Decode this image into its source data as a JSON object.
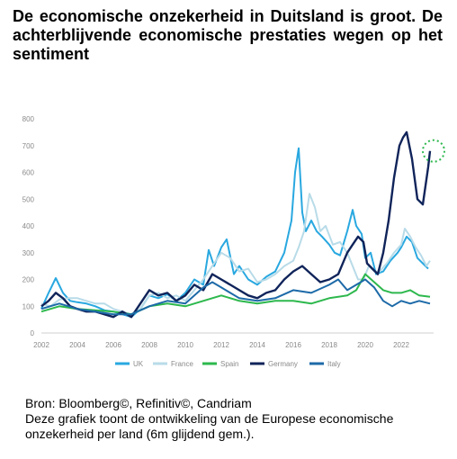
{
  "title": "De economische onzekerheid in Duitsland is groot. De achterblijvende economische prestaties wegen op het sentiment",
  "footer": {
    "source": "Bron: Bloomberg©, Refinitiv©, Candriam",
    "note": "Deze grafiek toont de ontwikkeling van de Europese economische onzekerheid per land (6m glijdend gem.)."
  },
  "chart_data": {
    "type": "line",
    "xlim": [
      2002,
      2023.8
    ],
    "ylim": [
      0,
      800
    ],
    "xticks": [
      2002,
      2004,
      2006,
      2008,
      2010,
      2012,
      2014,
      2016,
      2018,
      2020,
      2022
    ],
    "xtick_labels": [
      "2002",
      "2004",
      "2006",
      "2008",
      "2010",
      "2012",
      "2014",
      "2016",
      "2018",
      "2020",
      "2022"
    ],
    "yticks": [
      0,
      100,
      200,
      300,
      400,
      500,
      600,
      700,
      800
    ],
    "ytick_labels": [
      "0",
      "100",
      "200",
      "300",
      "400",
      "500",
      "600",
      "700",
      "800"
    ],
    "grid": false,
    "legend_position": "bottom",
    "annotation": "dotted green circle around latest Germany value",
    "series": [
      {
        "name": "UK",
        "color": "#29a8e0",
        "x": [
          2002,
          2002.4,
          2002.8,
          2003.2,
          2003.6,
          2004,
          2004.5,
          2005,
          2005.5,
          2006,
          2006.5,
          2007,
          2007.5,
          2008,
          2008.5,
          2009,
          2009.5,
          2010,
          2010.5,
          2011,
          2011.3,
          2011.6,
          2012,
          2012.3,
          2012.7,
          2013,
          2013.5,
          2014,
          2014.5,
          2015,
          2015.5,
          2015.9,
          2016.1,
          2016.3,
          2016.5,
          2016.7,
          2017,
          2017.3,
          2017.6,
          2018,
          2018.3,
          2018.6,
          2019,
          2019.3,
          2019.5,
          2019.8,
          2020,
          2020.3,
          2020.6,
          2021,
          2021.4,
          2021.8,
          2022,
          2022.3,
          2022.6,
          2022.9,
          2023.2,
          2023.5
        ],
        "y": [
          90,
          150,
          205,
          150,
          120,
          115,
          110,
          100,
          85,
          80,
          70,
          60,
          90,
          140,
          130,
          145,
          120,
          150,
          200,
          180,
          310,
          250,
          320,
          350,
          220,
          250,
          200,
          180,
          210,
          230,
          300,
          420,
          600,
          690,
          450,
          380,
          420,
          380,
          360,
          330,
          300,
          290,
          380,
          460,
          400,
          370,
          280,
          300,
          220,
          230,
          270,
          300,
          320,
          360,
          340,
          280,
          260,
          240
        ]
      },
      {
        "name": "France",
        "color": "#b8dbe8",
        "x": [
          2002,
          2002.5,
          2003,
          2003.5,
          2004,
          2004.5,
          2005,
          2005.5,
          2006,
          2006.5,
          2007,
          2007.5,
          2008,
          2008.5,
          2009,
          2009.5,
          2010,
          2010.5,
          2011,
          2011.5,
          2012,
          2012.5,
          2013,
          2013.5,
          2014,
          2014.5,
          2015,
          2015.5,
          2016,
          2016.3,
          2016.6,
          2016.9,
          2017.2,
          2017.5,
          2017.8,
          2018.2,
          2018.6,
          2019,
          2019.3,
          2019.6,
          2019.9,
          2020.2,
          2020.5,
          2020.8,
          2021.2,
          2021.6,
          2022,
          2022.2,
          2022.5,
          2022.8,
          2023.1,
          2023.4,
          2023.6
        ],
        "y": [
          110,
          100,
          125,
          130,
          130,
          120,
          110,
          110,
          90,
          80,
          70,
          90,
          140,
          150,
          130,
          140,
          120,
          160,
          200,
          250,
          300,
          280,
          230,
          240,
          190,
          200,
          220,
          250,
          270,
          320,
          380,
          520,
          470,
          380,
          400,
          330,
          340,
          300,
          250,
          200,
          200,
          250,
          230,
          230,
          260,
          300,
          330,
          390,
          360,
          320,
          290,
          250,
          270
        ]
      },
      {
        "name": "Spain",
        "color": "#2db84d",
        "x": [
          2002,
          2003,
          2004,
          2005,
          2006,
          2007,
          2008,
          2009,
          2010,
          2011,
          2012,
          2013,
          2014,
          2015,
          2016,
          2017,
          2018,
          2019,
          2019.5,
          2020,
          2020.5,
          2021,
          2021.5,
          2022,
          2022.5,
          2023,
          2023.6
        ],
        "y": [
          80,
          100,
          90,
          85,
          80,
          70,
          100,
          110,
          100,
          120,
          140,
          120,
          110,
          120,
          120,
          110,
          130,
          140,
          160,
          220,
          190,
          160,
          150,
          150,
          160,
          140,
          135
        ]
      },
      {
        "name": "Germany",
        "color": "#10245a",
        "x": [
          2002,
          2002.4,
          2002.8,
          2003.2,
          2003.6,
          2004,
          2004.5,
          2005,
          2005.5,
          2006,
          2006.5,
          2007,
          2007.5,
          2008,
          2008.5,
          2009,
          2009.5,
          2010,
          2010.5,
          2011,
          2011.5,
          2012,
          2012.5,
          2013,
          2013.5,
          2014,
          2014.5,
          2015,
          2015.5,
          2016,
          2016.5,
          2017,
          2017.5,
          2018,
          2018.5,
          2019,
          2019.3,
          2019.6,
          2019.9,
          2020.1,
          2020.4,
          2020.7,
          2021,
          2021.3,
          2021.6,
          2021.9,
          2022.1,
          2022.3,
          2022.6,
          2022.9,
          2023.2,
          2023.5,
          2023.6
        ],
        "y": [
          100,
          120,
          150,
          130,
          100,
          90,
          80,
          80,
          70,
          60,
          80,
          60,
          110,
          160,
          140,
          150,
          120,
          140,
          180,
          160,
          220,
          200,
          180,
          160,
          140,
          130,
          150,
          160,
          200,
          230,
          250,
          220,
          190,
          200,
          220,
          300,
          330,
          360,
          340,
          260,
          240,
          220,
          300,
          420,
          580,
          700,
          730,
          750,
          650,
          500,
          480,
          620,
          680
        ]
      },
      {
        "name": "Italy",
        "color": "#1d6aa8",
        "x": [
          2002,
          2003,
          2004,
          2005,
          2006,
          2007,
          2008,
          2009,
          2010,
          2011,
          2011.5,
          2012,
          2012.5,
          2013,
          2014,
          2015,
          2016,
          2017,
          2018,
          2018.5,
          2019,
          2020,
          2020.5,
          2021,
          2021.5,
          2022,
          2022.5,
          2023,
          2023.6
        ],
        "y": [
          90,
          110,
          90,
          80,
          70,
          70,
          100,
          120,
          110,
          170,
          190,
          170,
          150,
          130,
          120,
          130,
          160,
          150,
          180,
          200,
          160,
          200,
          170,
          120,
          100,
          120,
          110,
          120,
          110
        ]
      }
    ]
  }
}
